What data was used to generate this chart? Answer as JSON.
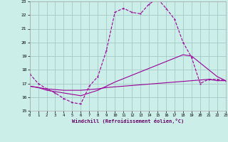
{
  "xlabel": "Windchill (Refroidissement éolien,°C)",
  "bg_color": "#cceee8",
  "grid_color": "#aacccc",
  "line_color": "#990099",
  "xlim": [
    0,
    23
  ],
  "ylim": [
    15,
    23
  ],
  "yticks": [
    15,
    16,
    17,
    18,
    19,
    20,
    21,
    22,
    23
  ],
  "xticks": [
    0,
    1,
    2,
    3,
    4,
    5,
    6,
    7,
    8,
    9,
    10,
    11,
    12,
    13,
    14,
    15,
    16,
    17,
    18,
    19,
    20,
    21,
    22,
    23
  ],
  "line1_x": [
    0,
    1,
    2,
    3,
    4,
    5,
    6,
    7,
    8,
    9,
    10,
    11,
    12,
    13,
    14,
    15,
    16,
    17,
    18,
    19,
    20,
    21,
    22,
    23
  ],
  "line1_y": [
    17.7,
    17.0,
    16.6,
    16.3,
    15.9,
    15.6,
    15.5,
    16.8,
    17.5,
    19.4,
    22.2,
    22.5,
    22.2,
    22.1,
    22.8,
    23.2,
    22.5,
    21.7,
    20.0,
    18.9,
    17.0,
    17.3,
    17.3,
    17.2
  ],
  "line2_x": [
    0,
    1,
    2,
    3,
    4,
    5,
    6,
    7,
    8,
    9,
    10,
    11,
    12,
    13,
    14,
    15,
    16,
    17,
    18,
    19,
    20,
    21,
    22,
    23
  ],
  "line2_y": [
    16.8,
    16.7,
    16.6,
    16.55,
    16.5,
    16.5,
    16.5,
    16.55,
    16.6,
    16.7,
    16.75,
    16.8,
    16.85,
    16.9,
    16.95,
    17.0,
    17.05,
    17.1,
    17.15,
    17.2,
    17.25,
    17.3,
    17.2,
    17.2
  ],
  "line3_x": [
    0,
    1,
    2,
    3,
    4,
    5,
    6,
    7,
    8,
    9,
    10,
    11,
    12,
    13,
    14,
    15,
    16,
    17,
    18,
    19,
    20,
    21,
    22,
    23
  ],
  "line3_y": [
    16.8,
    16.7,
    16.5,
    16.4,
    16.3,
    16.2,
    16.1,
    16.3,
    16.5,
    16.8,
    17.1,
    17.35,
    17.6,
    17.85,
    18.1,
    18.35,
    18.6,
    18.85,
    19.1,
    19.0,
    18.5,
    18.0,
    17.5,
    17.2
  ]
}
